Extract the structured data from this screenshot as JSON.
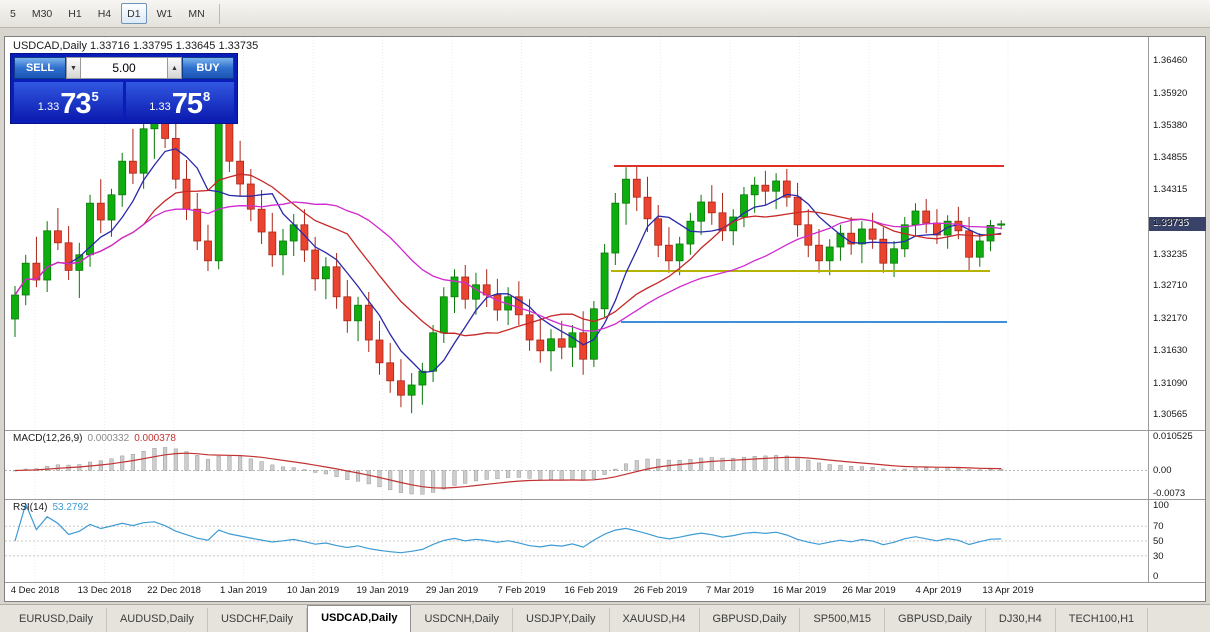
{
  "toolbar": {
    "timeframes": [
      {
        "label": "5",
        "active": false
      },
      {
        "label": "M30",
        "active": false
      },
      {
        "label": "H1",
        "active": false
      },
      {
        "label": "H4",
        "active": false
      },
      {
        "label": "D1",
        "active": true
      },
      {
        "label": "W1",
        "active": false
      },
      {
        "label": "MN",
        "active": false
      }
    ]
  },
  "chart": {
    "title": "USDCAD,Daily  1.33716 1.33795 1.33645 1.33735",
    "current_price": "1.33735",
    "trade_panel": {
      "sell_label": "SELL",
      "buy_label": "BUY",
      "volume": "5.00",
      "spin_down": "▼",
      "spin_up": "▲",
      "sell_price": {
        "prefix": "1.33",
        "big": "73",
        "sup": "5"
      },
      "buy_price": {
        "prefix": "1.33",
        "big": "75",
        "sup": "8"
      }
    }
  },
  "macd_panel": {
    "label": "MACD(12,26,9)",
    "values": [
      "0.000332",
      "0.000378"
    ],
    "axis": [
      "0.010525",
      "0.00",
      "-0.0073"
    ]
  },
  "rsi_panel": {
    "label": "RSI(14)",
    "value": "53.2792",
    "axis": [
      "100",
      "70",
      "50",
      "30",
      "0"
    ]
  },
  "tabs": [
    {
      "label": "EURUSD,Daily",
      "active": false
    },
    {
      "label": "AUDUSD,Daily",
      "active": false
    },
    {
      "label": "USDCHF,Daily",
      "active": false
    },
    {
      "label": "USDCAD,Daily",
      "active": true
    },
    {
      "label": "USDCNH,Daily",
      "active": false
    },
    {
      "label": "USDJPY,Daily",
      "active": false
    },
    {
      "label": "XAUUSD,H4",
      "active": false
    },
    {
      "label": "GBPUSD,Daily",
      "active": false
    },
    {
      "label": "SP500,M15",
      "active": false
    },
    {
      "label": "GBPUSD,Daily",
      "active": false
    },
    {
      "label": "DJ30,H4",
      "active": false
    },
    {
      "label": "TECH100,H1",
      "active": false
    }
  ],
  "chart_data": {
    "type": "candlestick",
    "title": "USDCAD,Daily",
    "price_range": [
      1.303,
      1.3685
    ],
    "y_axis_labels": [
      "1.36460",
      "1.35920",
      "1.35380",
      "1.34855",
      "1.34315",
      "1.33775",
      "1.33235",
      "1.32710",
      "1.32170",
      "1.31630",
      "1.31090",
      "1.30565"
    ],
    "x_axis_labels": [
      "4 Dec 2018",
      "13 Dec 2018",
      "22 Dec 2018",
      "1 Jan 2019",
      "10 Jan 2019",
      "19 Jan 2019",
      "29 Jan 2019",
      "7 Feb 2019",
      "16 Feb 2019",
      "26 Feb 2019",
      "7 Mar 2019",
      "16 Mar 2019",
      "26 Mar 2019",
      "4 Apr 2019",
      "13 Apr 2019"
    ],
    "up_color": "#0fae0f",
    "up_border": "#077807",
    "down_color": "#ea4430",
    "down_border": "#a92618",
    "ohlc": [
      [
        1.3215,
        1.327,
        1.3185,
        1.3255
      ],
      [
        1.3255,
        1.3322,
        1.3238,
        1.3308
      ],
      [
        1.3308,
        1.3352,
        1.3268,
        1.328
      ],
      [
        1.328,
        1.3378,
        1.326,
        1.3362
      ],
      [
        1.3362,
        1.34,
        1.333,
        1.3342
      ],
      [
        1.3342,
        1.337,
        1.328,
        1.3296
      ],
      [
        1.3296,
        1.3342,
        1.325,
        1.3322
      ],
      [
        1.3322,
        1.3422,
        1.3302,
        1.3408
      ],
      [
        1.3408,
        1.3448,
        1.3358,
        1.338
      ],
      [
        1.338,
        1.3432,
        1.3352,
        1.3422
      ],
      [
        1.3422,
        1.3492,
        1.3402,
        1.3478
      ],
      [
        1.3478,
        1.3532,
        1.344,
        1.3458
      ],
      [
        1.3458,
        1.3548,
        1.3432,
        1.3532
      ],
      [
        1.3532,
        1.3572,
        1.3482,
        1.356
      ],
      [
        1.356,
        1.3578,
        1.35,
        1.3516
      ],
      [
        1.3516,
        1.354,
        1.3432,
        1.3448
      ],
      [
        1.3448,
        1.348,
        1.338,
        1.3398
      ],
      [
        1.3398,
        1.3425,
        1.333,
        1.3345
      ],
      [
        1.3345,
        1.3372,
        1.3295,
        1.3312
      ],
      [
        1.3312,
        1.3565,
        1.3298,
        1.3545
      ],
      [
        1.3545,
        1.356,
        1.346,
        1.3478
      ],
      [
        1.3478,
        1.3512,
        1.342,
        1.344
      ],
      [
        1.344,
        1.3465,
        1.3378,
        1.3398
      ],
      [
        1.3398,
        1.343,
        1.334,
        1.336
      ],
      [
        1.336,
        1.3392,
        1.3302,
        1.3322
      ],
      [
        1.3322,
        1.3365,
        1.3288,
        1.3345
      ],
      [
        1.3345,
        1.339,
        1.332,
        1.3372
      ],
      [
        1.3372,
        1.3398,
        1.331,
        1.333
      ],
      [
        1.333,
        1.3352,
        1.3262,
        1.3282
      ],
      [
        1.3282,
        1.3318,
        1.3248,
        1.3302
      ],
      [
        1.3302,
        1.3325,
        1.3232,
        1.3252
      ],
      [
        1.3252,
        1.328,
        1.3192,
        1.3212
      ],
      [
        1.3212,
        1.3252,
        1.3178,
        1.3238
      ],
      [
        1.3238,
        1.326,
        1.316,
        1.318
      ],
      [
        1.318,
        1.3212,
        1.3122,
        1.3142
      ],
      [
        1.3142,
        1.3175,
        1.3092,
        1.3112
      ],
      [
        1.3112,
        1.3148,
        1.3068,
        1.3088
      ],
      [
        1.3088,
        1.3125,
        1.3058,
        1.3105
      ],
      [
        1.3105,
        1.3142,
        1.3072,
        1.3128
      ],
      [
        1.3128,
        1.3205,
        1.311,
        1.3192
      ],
      [
        1.3192,
        1.3268,
        1.3175,
        1.3252
      ],
      [
        1.3252,
        1.3298,
        1.3225,
        1.3285
      ],
      [
        1.3285,
        1.3305,
        1.3232,
        1.3248
      ],
      [
        1.3248,
        1.3292,
        1.3222,
        1.3272
      ],
      [
        1.3272,
        1.3298,
        1.3235,
        1.3255
      ],
      [
        1.3255,
        1.3282,
        1.3212,
        1.323
      ],
      [
        1.323,
        1.3268,
        1.3205,
        1.3252
      ],
      [
        1.3252,
        1.3278,
        1.3205,
        1.3222
      ],
      [
        1.3222,
        1.3248,
        1.3162,
        1.318
      ],
      [
        1.318,
        1.3215,
        1.3142,
        1.3162
      ],
      [
        1.3162,
        1.3198,
        1.3128,
        1.3182
      ],
      [
        1.3182,
        1.3212,
        1.3148,
        1.3168
      ],
      [
        1.3168,
        1.3205,
        1.3135,
        1.3192
      ],
      [
        1.3192,
        1.3228,
        1.3122,
        1.3148
      ],
      [
        1.3148,
        1.3245,
        1.3135,
        1.3232
      ],
      [
        1.3232,
        1.334,
        1.3218,
        1.3325
      ],
      [
        1.3325,
        1.3425,
        1.3305,
        1.3408
      ],
      [
        1.3408,
        1.3468,
        1.3372,
        1.3448
      ],
      [
        1.3448,
        1.3469,
        1.3395,
        1.3418
      ],
      [
        1.3418,
        1.3452,
        1.336,
        1.3382
      ],
      [
        1.3382,
        1.3405,
        1.3318,
        1.3338
      ],
      [
        1.3338,
        1.3368,
        1.3292,
        1.3312
      ],
      [
        1.3312,
        1.3352,
        1.3288,
        1.334
      ],
      [
        1.334,
        1.3392,
        1.3322,
        1.3378
      ],
      [
        1.3378,
        1.3422,
        1.3355,
        1.341
      ],
      [
        1.341,
        1.3438,
        1.3372,
        1.3392
      ],
      [
        1.3392,
        1.3425,
        1.3345,
        1.3362
      ],
      [
        1.3362,
        1.3398,
        1.3338,
        1.3385
      ],
      [
        1.3385,
        1.3435,
        1.3368,
        1.3422
      ],
      [
        1.3422,
        1.3452,
        1.3392,
        1.3438
      ],
      [
        1.3438,
        1.3462,
        1.3405,
        1.3428
      ],
      [
        1.3428,
        1.3458,
        1.3398,
        1.3445
      ],
      [
        1.3445,
        1.3465,
        1.3402,
        1.3418
      ],
      [
        1.3418,
        1.3442,
        1.3352,
        1.3372
      ],
      [
        1.3372,
        1.3398,
        1.3318,
        1.3338
      ],
      [
        1.3338,
        1.3365,
        1.3292,
        1.3312
      ],
      [
        1.3312,
        1.3348,
        1.3288,
        1.3335
      ],
      [
        1.3335,
        1.3372,
        1.3312,
        1.3358
      ],
      [
        1.3358,
        1.3385,
        1.3322,
        1.334
      ],
      [
        1.334,
        1.3378,
        1.3308,
        1.3365
      ],
      [
        1.3365,
        1.3392,
        1.3332,
        1.3348
      ],
      [
        1.3348,
        1.3368,
        1.3292,
        1.3308
      ],
      [
        1.3308,
        1.3345,
        1.3285,
        1.3332
      ],
      [
        1.3332,
        1.3385,
        1.3318,
        1.3372
      ],
      [
        1.3372,
        1.3408,
        1.3352,
        1.3395
      ],
      [
        1.3395,
        1.3415,
        1.3358,
        1.3375
      ],
      [
        1.3375,
        1.3398,
        1.334,
        1.3355
      ],
      [
        1.3355,
        1.3388,
        1.3332,
        1.3378
      ],
      [
        1.3378,
        1.3402,
        1.3348,
        1.3362
      ],
      [
        1.3362,
        1.3385,
        1.3295,
        1.3318
      ],
      [
        1.3318,
        1.3358,
        1.3302,
        1.3345
      ],
      [
        1.3345,
        1.338,
        1.3328,
        1.3371
      ],
      [
        1.33716,
        1.33795,
        1.33645,
        1.33735
      ]
    ],
    "moving_averages": [
      {
        "period": 6,
        "color": "#2828a8"
      },
      {
        "period": 13,
        "color": "#c62828"
      },
      {
        "period": 24,
        "color": "#d02ad0"
      }
    ],
    "levels": [
      {
        "price": 1.347,
        "color": "#e03127",
        "x1": 0.533,
        "x2": 0.874,
        "stroke": 2
      },
      {
        "price": 1.3295,
        "color": "#b4b400",
        "x1": 0.53,
        "x2": 0.862,
        "stroke": 2
      },
      {
        "price": 1.321,
        "color": "#3f8fdc",
        "x1": 0.539,
        "x2": 0.877,
        "stroke": 2
      }
    ],
    "macd": {
      "fast": 12,
      "slow": 26,
      "signal": 9,
      "range": [
        -0.0075,
        0.0107
      ],
      "hist_color": "#cdcdcd",
      "hist_border": "#9b9b9b",
      "signal_color": "#c23232"
    },
    "rsi": {
      "period": 14,
      "color": "#3e9bd4",
      "levels": [
        70,
        50,
        30
      ],
      "range": [
        0,
        100
      ]
    }
  }
}
